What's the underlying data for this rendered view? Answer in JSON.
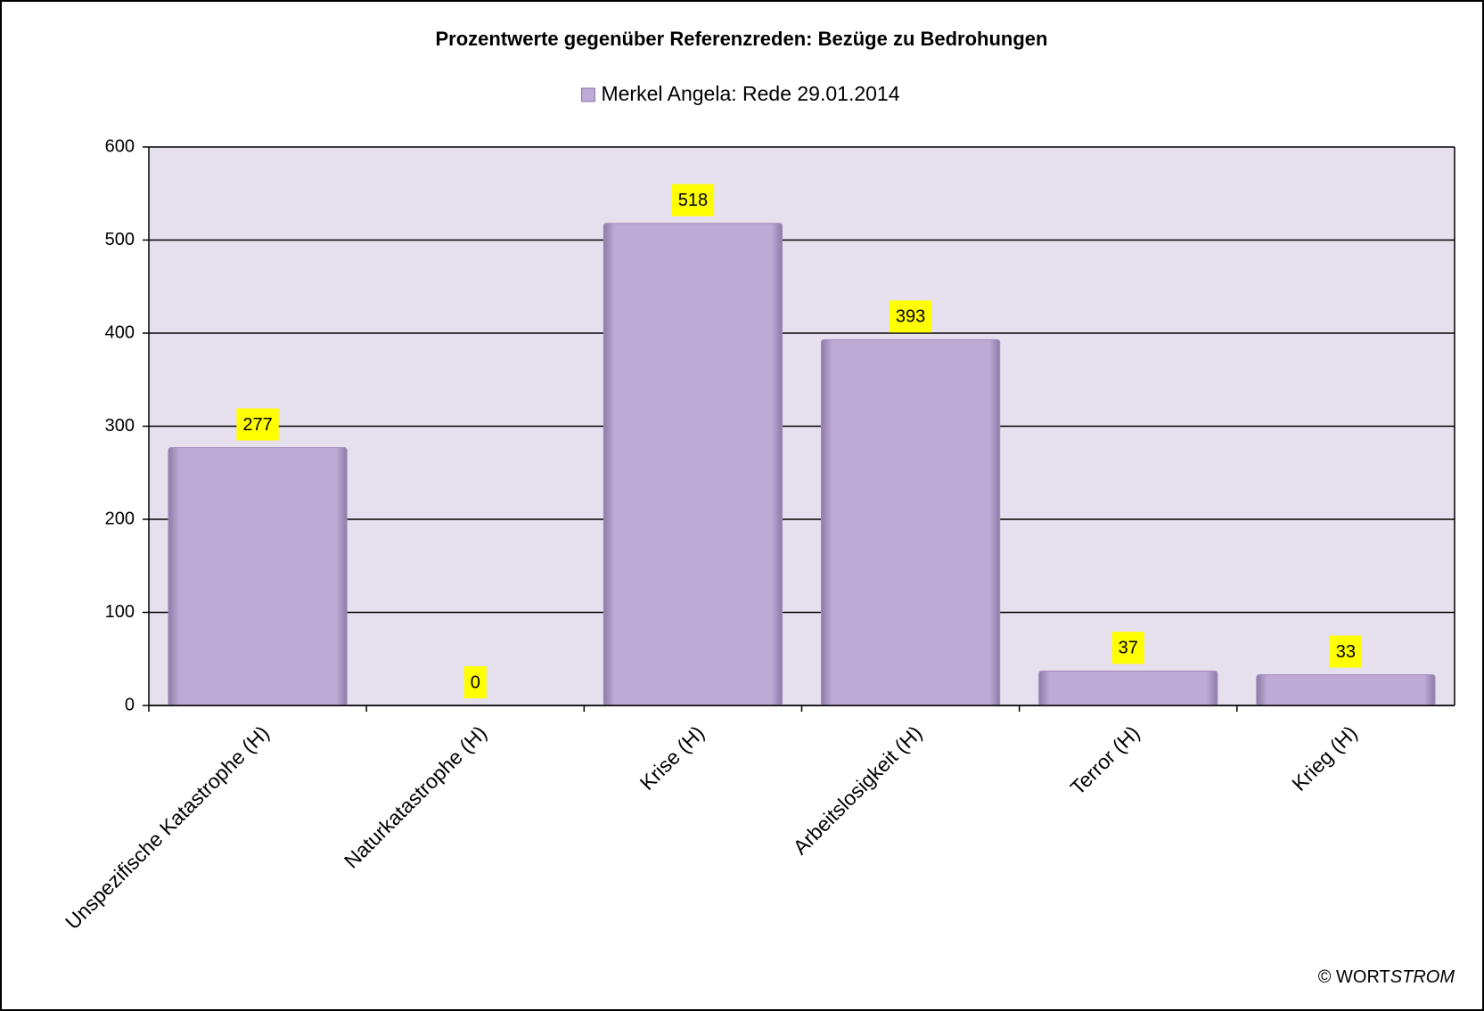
{
  "chart_data": {
    "type": "bar",
    "title": "Prozentwerte gegenüber Referenzreden:  Bezüge zu Bedrohungen",
    "categories": [
      "Unspezifische Katastrophe (H)",
      "Naturkatastrophe (H)",
      "Krise (H)",
      "Arbeitslosigkeit (H)",
      "Terror (H)",
      "Krieg (H)"
    ],
    "series": [
      {
        "name": "Merkel Angela: Rede 29.01.2014",
        "color": "#bdaad5",
        "values": [
          277,
          0,
          518,
          393,
          37,
          33
        ]
      }
    ],
    "ylim": [
      0,
      600
    ],
    "yticks": [
      0,
      100,
      200,
      300,
      400,
      500,
      600
    ],
    "grid": true,
    "legend": "top",
    "copyright": [
      "© WORT",
      "STROM"
    ]
  }
}
